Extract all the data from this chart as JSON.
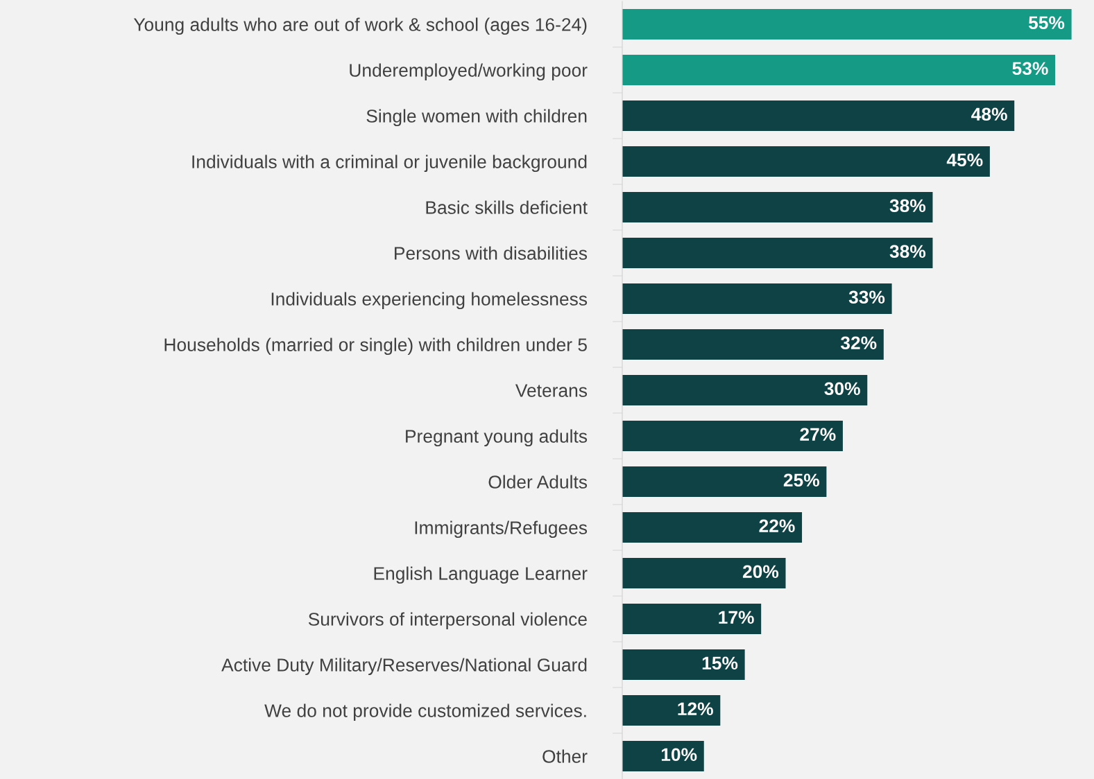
{
  "chart_data": {
    "type": "bar",
    "orientation": "horizontal",
    "tick_labels": "y",
    "grid": false,
    "legend": false,
    "value_labels": [
      "55%",
      "53%",
      "48%",
      "45%",
      "38%",
      "38%",
      "33%",
      "32%",
      "30%",
      "27%",
      "25%",
      "22%",
      "20%",
      "17%",
      "15%",
      "12%",
      "10%"
    ],
    "categories": [
      "Young adults who are out of work & school (ages 16-24)",
      "Underemployed/working poor",
      "Single women with children",
      "Individuals with a criminal or juvenile background",
      "Basic skills deficient",
      "Persons with disabilities",
      "Individuals experiencing homelessness",
      "Households (married or single) with children under 5",
      "Veterans",
      "Pregnant young adults",
      "Older Adults",
      "Immigrants/Refugees",
      "English Language Learner",
      "Survivors of interpersonal violence",
      "Active Duty Military/Reserves/National Guard",
      "We do not provide customized services.",
      "Other"
    ],
    "values": [
      55,
      53,
      48,
      45,
      38,
      38,
      33,
      32,
      30,
      27,
      25,
      22,
      20,
      17,
      15,
      12,
      10
    ],
    "colors": [
      "#159a85",
      "#159a85",
      "#0f4245",
      "#0f4245",
      "#0f4245",
      "#0f4245",
      "#0f4245",
      "#0f4245",
      "#0f4245",
      "#0f4245",
      "#0f4245",
      "#0f4245",
      "#0f4245",
      "#0f4245",
      "#0f4245",
      "#0f4245",
      "#0f4245"
    ]
  }
}
